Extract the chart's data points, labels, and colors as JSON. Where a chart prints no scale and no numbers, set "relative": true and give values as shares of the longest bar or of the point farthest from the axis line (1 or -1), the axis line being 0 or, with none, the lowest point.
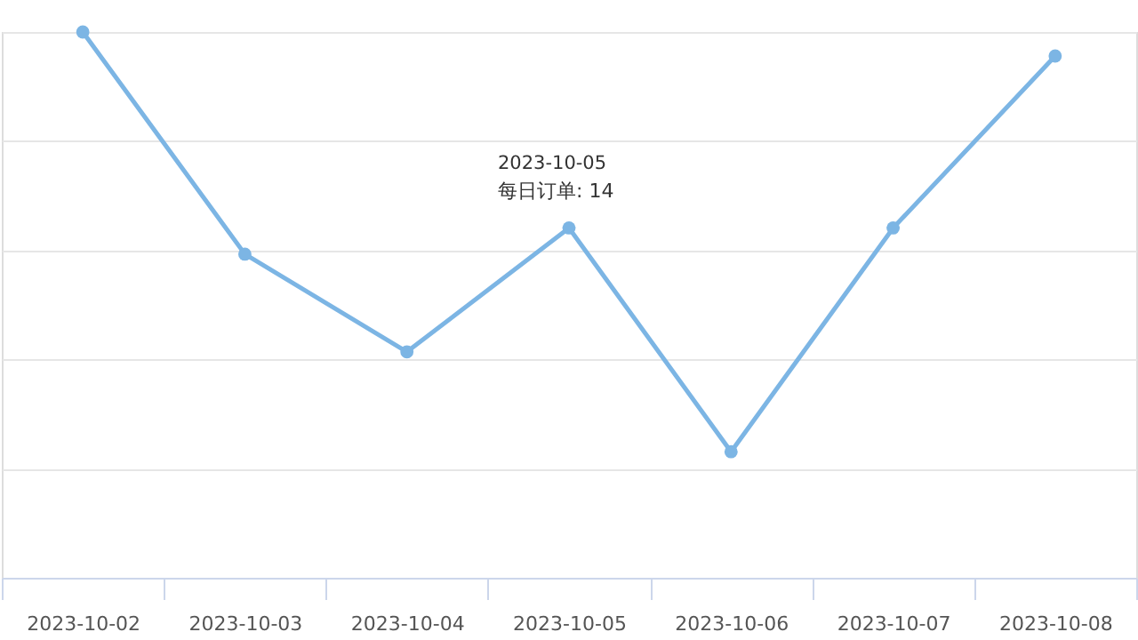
{
  "chart_data": {
    "type": "line",
    "relative": true,
    "categories": [
      "2023-10-02",
      "2023-10-03",
      "2023-10-04",
      "2023-10-05",
      "2023-10-06",
      "2023-10-07",
      "2023-10-08"
    ],
    "series": [
      {
        "color": "#7cb5e4",
        "values": [
          1,
          0.593,
          0.414,
          0.641,
          0.231,
          0.641,
          0.956
        ]
      }
    ],
    "annotations": [
      {
        "text": "2023-10-05",
        "x": "2023-10-05",
        "y": 0.641
      },
      {
        "text": "每日订单: 14",
        "x": "2023-10-05",
        "y": 0.641
      }
    ],
    "grid": "y",
    "marker": "circle",
    "line_style": "solid"
  }
}
